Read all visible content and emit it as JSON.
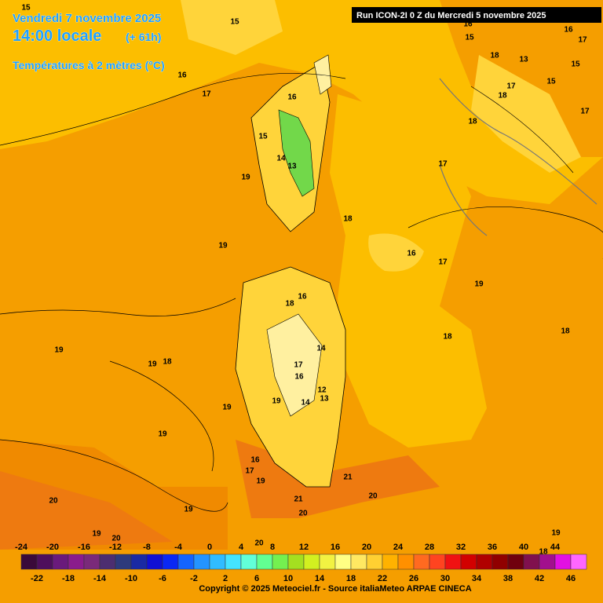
{
  "header": {
    "date": "Vendredi 7 novembre 2025",
    "time": "14:00 locale",
    "lead": "(+ 61h)",
    "field": "Températures à 2 mètres (°C)",
    "run": "Run ICON-2I 0 Z du Mercredi 5 novembre 2025"
  },
  "contour_labels": [
    15,
    15,
    16,
    17,
    16,
    15,
    14,
    13,
    19,
    18,
    19,
    16,
    17,
    19,
    16,
    18,
    18,
    18,
    19,
    19,
    18,
    14,
    17,
    16,
    12,
    13,
    14,
    19,
    19,
    19,
    16,
    17,
    19,
    21,
    21,
    20,
    20,
    20,
    19,
    19,
    20,
    20,
    19,
    18,
    16,
    15,
    16,
    17,
    18,
    13,
    15,
    17,
    18,
    15,
    17,
    18,
    17
  ],
  "colorbar": {
    "colors": [
      "#3a0a3a",
      "#4e0f5c",
      "#6a1a7c",
      "#8a1c8c",
      "#7a2a7a",
      "#4c2e70",
      "#2e3a7c",
      "#1a2aa4",
      "#1010d4",
      "#0a28f4",
      "#1464ff",
      "#2494ff",
      "#30bcff",
      "#44e4ff",
      "#62ffd8",
      "#62ff92",
      "#74f050",
      "#a4e020",
      "#d2f020",
      "#f2f242",
      "#ffff84",
      "#ffe862",
      "#ffd032",
      "#ffb200",
      "#ff9000",
      "#ff6a20",
      "#ff4420",
      "#f01212",
      "#d20000",
      "#b00000",
      "#900000",
      "#70000e",
      "#80104e",
      "#a2108e",
      "#e210e2",
      "#ff66ff"
    ],
    "labels_top": [
      -24,
      -20,
      -16,
      -12,
      -8,
      -4,
      0,
      4,
      8,
      12,
      16,
      20,
      24,
      28,
      32,
      36,
      40,
      44
    ],
    "labels_bottom": [
      -22,
      -18,
      -14,
      -10,
      -6,
      -2,
      2,
      6,
      10,
      14,
      18,
      22,
      26,
      30,
      34,
      38,
      42,
      46
    ]
  },
  "footer": "Copyright © 2025 Meteociel.fr - Source italiaMeteo ARPAE CINECA"
}
